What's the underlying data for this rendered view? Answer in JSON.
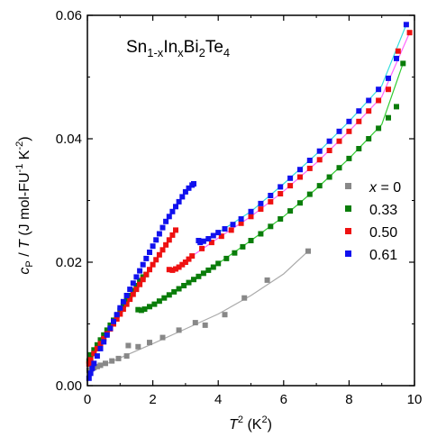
{
  "chart_data": {
    "type": "scatter",
    "title": "",
    "annotation": {
      "prefix": "Sn",
      "sub1": "1-x",
      "mid1": "In",
      "sub2": "x",
      "mid2": "Bi",
      "sub3": "2",
      "mid3": "Te",
      "sub4": "4"
    },
    "xlabel": {
      "main": "T",
      "sup": "2",
      "unit": " (K",
      "unit_sup": "2",
      "close": ")"
    },
    "ylabel": {
      "c": "c",
      "csub": "P",
      "rest": " / ",
      "T": "T",
      "unit": " (J mol-FU",
      "sup1": "-1",
      "unit2": " K",
      "sup2": "-2",
      "close": ")"
    },
    "xlim": [
      0,
      10
    ],
    "ylim": [
      0,
      0.06
    ],
    "xticks": [
      "0",
      "2",
      "4",
      "6",
      "8",
      "10"
    ],
    "yticks": [
      "0.00",
      "0.02",
      "0.04",
      "0.06"
    ],
    "legend": {
      "placement": "center-right",
      "header_var": "x",
      "header_rest": " = 0",
      "labels": [
        "0.33",
        "0.50",
        "0.61"
      ]
    },
    "series": [
      {
        "name": "x = 0",
        "color": "#888888",
        "line_color": "#aaaaaa",
        "points": [
          [
            0.05,
            0.0025
          ],
          [
            0.12,
            0.0027
          ],
          [
            0.2,
            0.0029
          ],
          [
            0.3,
            0.0031
          ],
          [
            0.4,
            0.0033
          ],
          [
            0.55,
            0.0036
          ],
          [
            0.75,
            0.004
          ],
          [
            0.95,
            0.0044
          ],
          [
            1.2,
            0.0048
          ],
          [
            1.25,
            0.0065
          ],
          [
            1.55,
            0.0063
          ],
          [
            1.9,
            0.007
          ],
          [
            2.3,
            0.0078
          ],
          [
            2.8,
            0.009
          ],
          [
            3.3,
            0.0102
          ],
          [
            3.6,
            0.0098
          ],
          [
            4.2,
            0.0115
          ],
          [
            4.8,
            0.0142
          ],
          [
            5.5,
            0.0171
          ],
          [
            6.75,
            0.0218
          ]
        ],
        "fit": [
          [
            0.0,
            0.0022
          ],
          [
            1.0,
            0.0045
          ],
          [
            2.0,
            0.0068
          ],
          [
            3.0,
            0.0092
          ],
          [
            4.0,
            0.0116
          ],
          [
            5.0,
            0.0146
          ],
          [
            6.0,
            0.0181
          ],
          [
            6.75,
            0.0218
          ]
        ]
      },
      {
        "name": "0.33",
        "color": "#0a7d0a",
        "line_color": "#33cc33",
        "points": [
          [
            0.05,
            0.004
          ],
          [
            0.1,
            0.005
          ],
          [
            0.2,
            0.0058
          ],
          [
            0.3,
            0.0066
          ],
          [
            0.4,
            0.0074
          ],
          [
            0.5,
            0.0082
          ],
          [
            0.6,
            0.009
          ],
          [
            0.7,
            0.0098
          ],
          [
            0.8,
            0.0106
          ],
          [
            0.9,
            0.0114
          ],
          [
            1.0,
            0.0122
          ],
          [
            1.1,
            0.013
          ],
          [
            1.2,
            0.0138
          ],
          [
            1.3,
            0.0146
          ],
          [
            1.4,
            0.0154
          ],
          [
            1.5,
            0.0162
          ],
          [
            1.6,
            0.017
          ],
          [
            1.7,
            0.0176
          ],
          [
            1.8,
            0.018
          ],
          [
            1.55,
            0.0123
          ],
          [
            1.65,
            0.0122
          ],
          [
            1.75,
            0.0124
          ],
          [
            1.9,
            0.0128
          ],
          [
            2.05,
            0.0132
          ],
          [
            2.2,
            0.0137
          ],
          [
            2.35,
            0.0142
          ],
          [
            2.5,
            0.0147
          ],
          [
            2.65,
            0.0152
          ],
          [
            2.8,
            0.0157
          ],
          [
            2.95,
            0.0162
          ],
          [
            3.1,
            0.0167
          ],
          [
            3.25,
            0.0172
          ],
          [
            3.4,
            0.0177
          ],
          [
            3.55,
            0.0182
          ],
          [
            3.7,
            0.0187
          ],
          [
            3.85,
            0.0192
          ],
          [
            4.0,
            0.0198
          ],
          [
            4.25,
            0.0206
          ],
          [
            4.5,
            0.0215
          ],
          [
            4.75,
            0.0225
          ],
          [
            5.0,
            0.0235
          ],
          [
            5.3,
            0.0246
          ],
          [
            5.6,
            0.0258
          ],
          [
            5.9,
            0.027
          ],
          [
            6.2,
            0.0283
          ],
          [
            6.5,
            0.0296
          ],
          [
            6.8,
            0.031
          ],
          [
            7.1,
            0.0324
          ],
          [
            7.4,
            0.0338
          ],
          [
            7.7,
            0.0353
          ],
          [
            8.0,
            0.0368
          ],
          [
            8.3,
            0.0384
          ],
          [
            8.6,
            0.04
          ],
          [
            8.9,
            0.0417
          ],
          [
            9.2,
            0.0434
          ],
          [
            9.45,
            0.0452
          ],
          [
            9.65,
            0.0522
          ]
        ],
        "fit": [
          [
            3.3,
            0.0172
          ],
          [
            4.0,
            0.0198
          ],
          [
            5.0,
            0.0235
          ],
          [
            6.0,
            0.0274
          ],
          [
            7.0,
            0.0319
          ],
          [
            8.0,
            0.0368
          ],
          [
            9.0,
            0.0423
          ],
          [
            9.65,
            0.0522
          ]
        ]
      },
      {
        "name": "0.50",
        "color": "#ee1111",
        "line_color": "#ff66ff",
        "points": [
          [
            0.05,
            0.0035
          ],
          [
            0.1,
            0.0042
          ],
          [
            0.2,
            0.0052
          ],
          [
            0.3,
            0.006
          ],
          [
            0.4,
            0.0068
          ],
          [
            0.5,
            0.0076
          ],
          [
            0.6,
            0.0084
          ],
          [
            0.7,
            0.0092
          ],
          [
            0.8,
            0.01
          ],
          [
            0.9,
            0.0108
          ],
          [
            1.0,
            0.0116
          ],
          [
            1.1,
            0.0124
          ],
          [
            1.2,
            0.0132
          ],
          [
            1.3,
            0.014
          ],
          [
            1.4,
            0.0148
          ],
          [
            1.5,
            0.0156
          ],
          [
            1.6,
            0.0164
          ],
          [
            1.7,
            0.0172
          ],
          [
            1.8,
            0.018
          ],
          [
            1.9,
            0.0188
          ],
          [
            2.0,
            0.0196
          ],
          [
            2.1,
            0.0204
          ],
          [
            2.2,
            0.0212
          ],
          [
            2.3,
            0.022
          ],
          [
            2.4,
            0.0228
          ],
          [
            2.5,
            0.0236
          ],
          [
            2.6,
            0.0244
          ],
          [
            2.7,
            0.0252
          ],
          [
            2.5,
            0.0188
          ],
          [
            2.6,
            0.0187
          ],
          [
            2.7,
            0.0189
          ],
          [
            2.8,
            0.0192
          ],
          [
            2.9,
            0.0196
          ],
          [
            3.0,
            0.02
          ],
          [
            3.1,
            0.0205
          ],
          [
            3.2,
            0.021
          ],
          [
            3.5,
            0.0222
          ],
          [
            3.8,
            0.0232
          ],
          [
            4.1,
            0.0242
          ],
          [
            4.4,
            0.0252
          ],
          [
            4.7,
            0.0263
          ],
          [
            5.0,
            0.0274
          ],
          [
            5.3,
            0.0286
          ],
          [
            5.6,
            0.0298
          ],
          [
            5.9,
            0.0311
          ],
          [
            6.2,
            0.0324
          ],
          [
            6.5,
            0.0338
          ],
          [
            6.8,
            0.0352
          ],
          [
            7.1,
            0.0366
          ],
          [
            7.4,
            0.0381
          ],
          [
            7.7,
            0.0396
          ],
          [
            8.0,
            0.0412
          ],
          [
            8.3,
            0.0428
          ],
          [
            8.6,
            0.0445
          ],
          [
            8.9,
            0.0462
          ],
          [
            9.2,
            0.048
          ],
          [
            9.5,
            0.0542
          ],
          [
            9.85,
            0.0572
          ]
        ],
        "fit": [
          [
            3.2,
            0.021
          ],
          [
            4.0,
            0.0239
          ],
          [
            5.0,
            0.0274
          ],
          [
            6.0,
            0.0315
          ],
          [
            7.0,
            0.0361
          ],
          [
            8.0,
            0.0412
          ],
          [
            9.0,
            0.0468
          ],
          [
            9.85,
            0.0572
          ]
        ]
      },
      {
        "name": "0.61",
        "color": "#1111ee",
        "line_color": "#33dddd",
        "points": [
          [
            0.05,
            0.0012
          ],
          [
            0.1,
            0.002
          ],
          [
            0.15,
            0.0028
          ],
          [
            0.2,
            0.0036
          ],
          [
            0.3,
            0.0048
          ],
          [
            0.4,
            0.006
          ],
          [
            0.5,
            0.0071
          ],
          [
            0.6,
            0.0082
          ],
          [
            0.7,
            0.0093
          ],
          [
            0.8,
            0.0104
          ],
          [
            0.9,
            0.0115
          ],
          [
            1.0,
            0.0126
          ],
          [
            1.1,
            0.0136
          ],
          [
            1.2,
            0.0146
          ],
          [
            1.3,
            0.0156
          ],
          [
            1.4,
            0.0166
          ],
          [
            1.5,
            0.0176
          ],
          [
            1.6,
            0.0186
          ],
          [
            1.7,
            0.0196
          ],
          [
            1.8,
            0.0206
          ],
          [
            1.9,
            0.0216
          ],
          [
            2.0,
            0.0226
          ],
          [
            2.1,
            0.0236
          ],
          [
            2.2,
            0.0246
          ],
          [
            2.3,
            0.0256
          ],
          [
            2.4,
            0.0266
          ],
          [
            2.5,
            0.0274
          ],
          [
            2.6,
            0.0282
          ],
          [
            2.7,
            0.029
          ],
          [
            2.8,
            0.0298
          ],
          [
            2.9,
            0.0306
          ],
          [
            3.0,
            0.0314
          ],
          [
            3.1,
            0.032
          ],
          [
            3.2,
            0.0325
          ],
          [
            3.25,
            0.0327
          ],
          [
            3.4,
            0.0235
          ],
          [
            3.45,
            0.0232
          ],
          [
            3.55,
            0.0234
          ],
          [
            3.7,
            0.0238
          ],
          [
            3.85,
            0.0243
          ],
          [
            4.0,
            0.0248
          ],
          [
            4.2,
            0.0254
          ],
          [
            4.45,
            0.0261
          ],
          [
            4.7,
            0.027
          ],
          [
            5.0,
            0.0282
          ],
          [
            5.3,
            0.0295
          ],
          [
            5.6,
            0.0308
          ],
          [
            5.9,
            0.0322
          ],
          [
            6.2,
            0.0336
          ],
          [
            6.5,
            0.035
          ],
          [
            6.8,
            0.0365
          ],
          [
            7.1,
            0.038
          ],
          [
            7.4,
            0.0396
          ],
          [
            7.7,
            0.0412
          ],
          [
            8.0,
            0.0428
          ],
          [
            8.3,
            0.0445
          ],
          [
            8.6,
            0.0462
          ],
          [
            8.9,
            0.048
          ],
          [
            9.2,
            0.0498
          ],
          [
            9.45,
            0.053
          ],
          [
            9.75,
            0.0585
          ]
        ],
        "fit": [
          [
            3.4,
            0.0232
          ],
          [
            4.0,
            0.0248
          ],
          [
            5.0,
            0.0282
          ],
          [
            6.0,
            0.0327
          ],
          [
            7.0,
            0.0375
          ],
          [
            8.0,
            0.0428
          ],
          [
            9.0,
            0.0486
          ],
          [
            9.75,
            0.0585
          ]
        ]
      }
    ]
  }
}
